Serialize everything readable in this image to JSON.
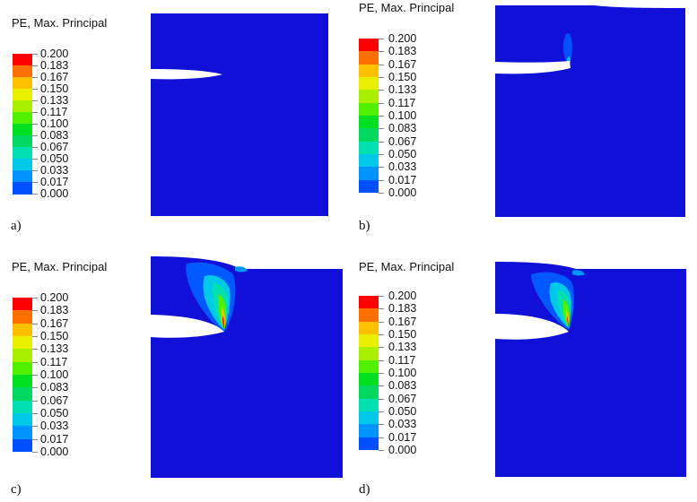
{
  "colors": {
    "background": "#1010D8",
    "legend_scale": [
      "#0000FF",
      "#0050FF",
      "#0094FF",
      "#00C8E8",
      "#00E0B0",
      "#00D860",
      "#00E020",
      "#50F000",
      "#A8F000",
      "#E8F000",
      "#FFC000",
      "#FF7000",
      "#FF0000"
    ],
    "crack": "#FFFFFF"
  },
  "legend": {
    "title": "PE, Max. Principal",
    "levels": [
      "0.200",
      "0.183",
      "0.167",
      "0.150",
      "0.133",
      "0.117",
      "0.100",
      "0.083",
      "0.067",
      "0.050",
      "0.033",
      "0.017",
      "0.000"
    ]
  },
  "panels": [
    {
      "id": "a",
      "label": "a)"
    },
    {
      "id": "b",
      "label": "b)"
    },
    {
      "id": "c",
      "label": "c)"
    },
    {
      "id": "d",
      "label": "d)"
    }
  ]
}
